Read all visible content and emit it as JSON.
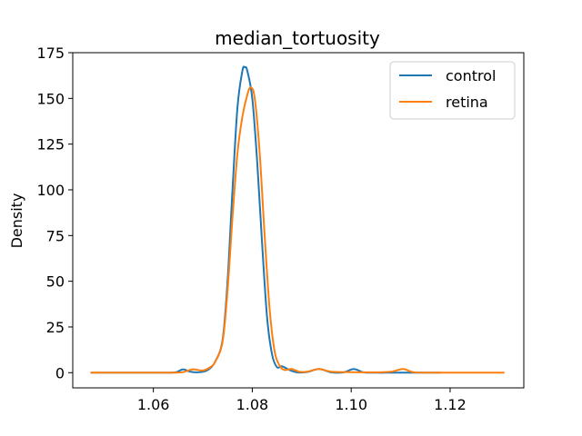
{
  "chart_data": {
    "type": "line",
    "title": "median_tortuosity",
    "xlabel": "",
    "ylabel": "Density",
    "xlim": [
      1.0437,
      1.1349
    ],
    "ylim": [
      -8.3,
      175
    ],
    "xticks": [
      1.06,
      1.08,
      1.1,
      1.12
    ],
    "xtick_labels": [
      "1.06",
      "1.08",
      "1.10",
      "1.12"
    ],
    "yticks": [
      0,
      25,
      50,
      75,
      100,
      125,
      150,
      175
    ],
    "ytick_labels": [
      "0",
      "25",
      "50",
      "75",
      "100",
      "125",
      "150",
      "175"
    ],
    "grid": false,
    "legend_position": "upper-right",
    "series": [
      {
        "name": "control",
        "color": "#1f77b4",
        "x": [
          1.0473,
          1.055,
          1.062,
          1.0645,
          1.066,
          1.0675,
          1.0695,
          1.071,
          1.0725,
          1.074,
          1.075,
          1.076,
          1.077,
          1.078,
          1.0785,
          1.079,
          1.08,
          1.081,
          1.082,
          1.083,
          1.084,
          1.085,
          1.086,
          1.0875,
          1.089,
          1.091,
          1.0935,
          1.096,
          1.0985,
          1.1005,
          1.1025,
          1.105,
          1.108,
          1.1105,
          1.113,
          1.1181
        ],
        "y": [
          0,
          0,
          0,
          0.2,
          1.8,
          0.5,
          0.3,
          1.5,
          6,
          18,
          50,
          100,
          145,
          165,
          167,
          165,
          150,
          115,
          70,
          30,
          10,
          3,
          3.5,
          1.5,
          0.2,
          0.3,
          2,
          0.2,
          0.2,
          2,
          0.2,
          0,
          0,
          0,
          0,
          0
        ]
      },
      {
        "name": "retina",
        "color": "#ff7f0e",
        "x": [
          1.0473,
          1.058,
          1.064,
          1.066,
          1.068,
          1.07,
          1.0715,
          1.0725,
          1.074,
          1.075,
          1.076,
          1.077,
          1.078,
          1.079,
          1.0797,
          1.0805,
          1.0815,
          1.0825,
          1.0835,
          1.0845,
          1.0855,
          1.0865,
          1.088,
          1.0895,
          1.091,
          1.0935,
          1.096,
          1.1,
          1.105,
          1.108,
          1.1105,
          1.1125,
          1.116,
          1.122,
          1.131
        ],
        "y": [
          0,
          0,
          0,
          0.3,
          1.8,
          1.2,
          3,
          6,
          17,
          45,
          85,
          120,
          140,
          152,
          156,
          150,
          120,
          75,
          35,
          12,
          4,
          1.5,
          2,
          0.5,
          0.5,
          2,
          0.5,
          0.3,
          0.2,
          0.5,
          2,
          0.3,
          0,
          0,
          0
        ]
      }
    ]
  }
}
